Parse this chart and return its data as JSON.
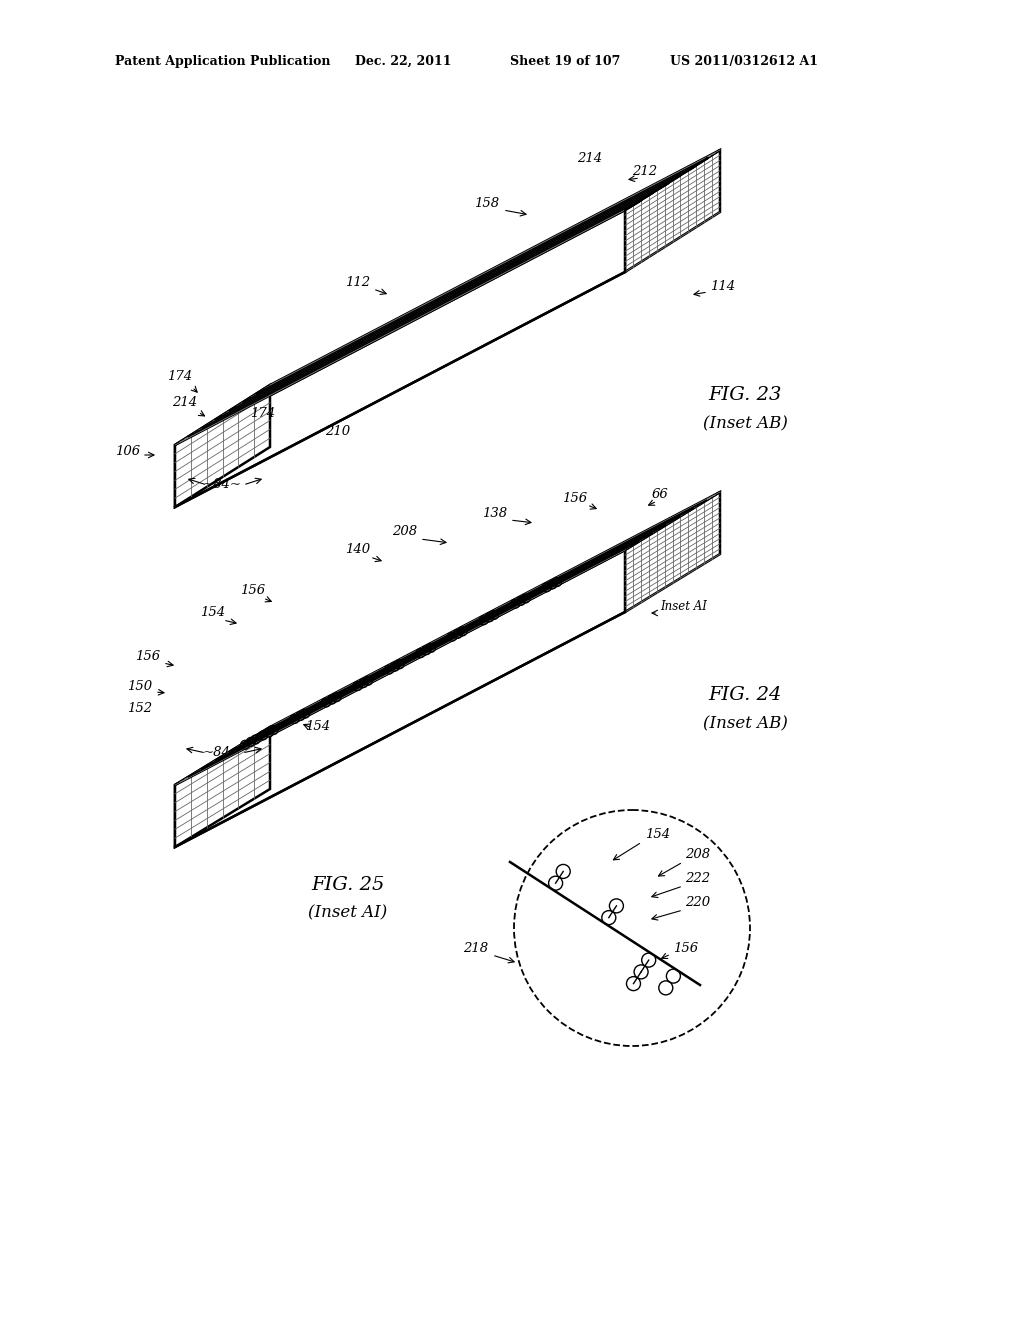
{
  "background_color": "#ffffff",
  "header_text": "Patent Application Publication",
  "header_date": "Dec. 22, 2011",
  "header_sheet": "Sheet 19 of 107",
  "header_patent": "US 2011/0312612 A1",
  "fig23_title": "FIG. 23",
  "fig23_subtitle": "(Inset AB)",
  "fig24_title": "FIG. 24",
  "fig24_subtitle": "(Inset AB)",
  "fig25_title": "FIG. 25",
  "fig25_subtitle": "(Inset AI)",
  "line_color": "#000000",
  "text_color": "#000000"
}
